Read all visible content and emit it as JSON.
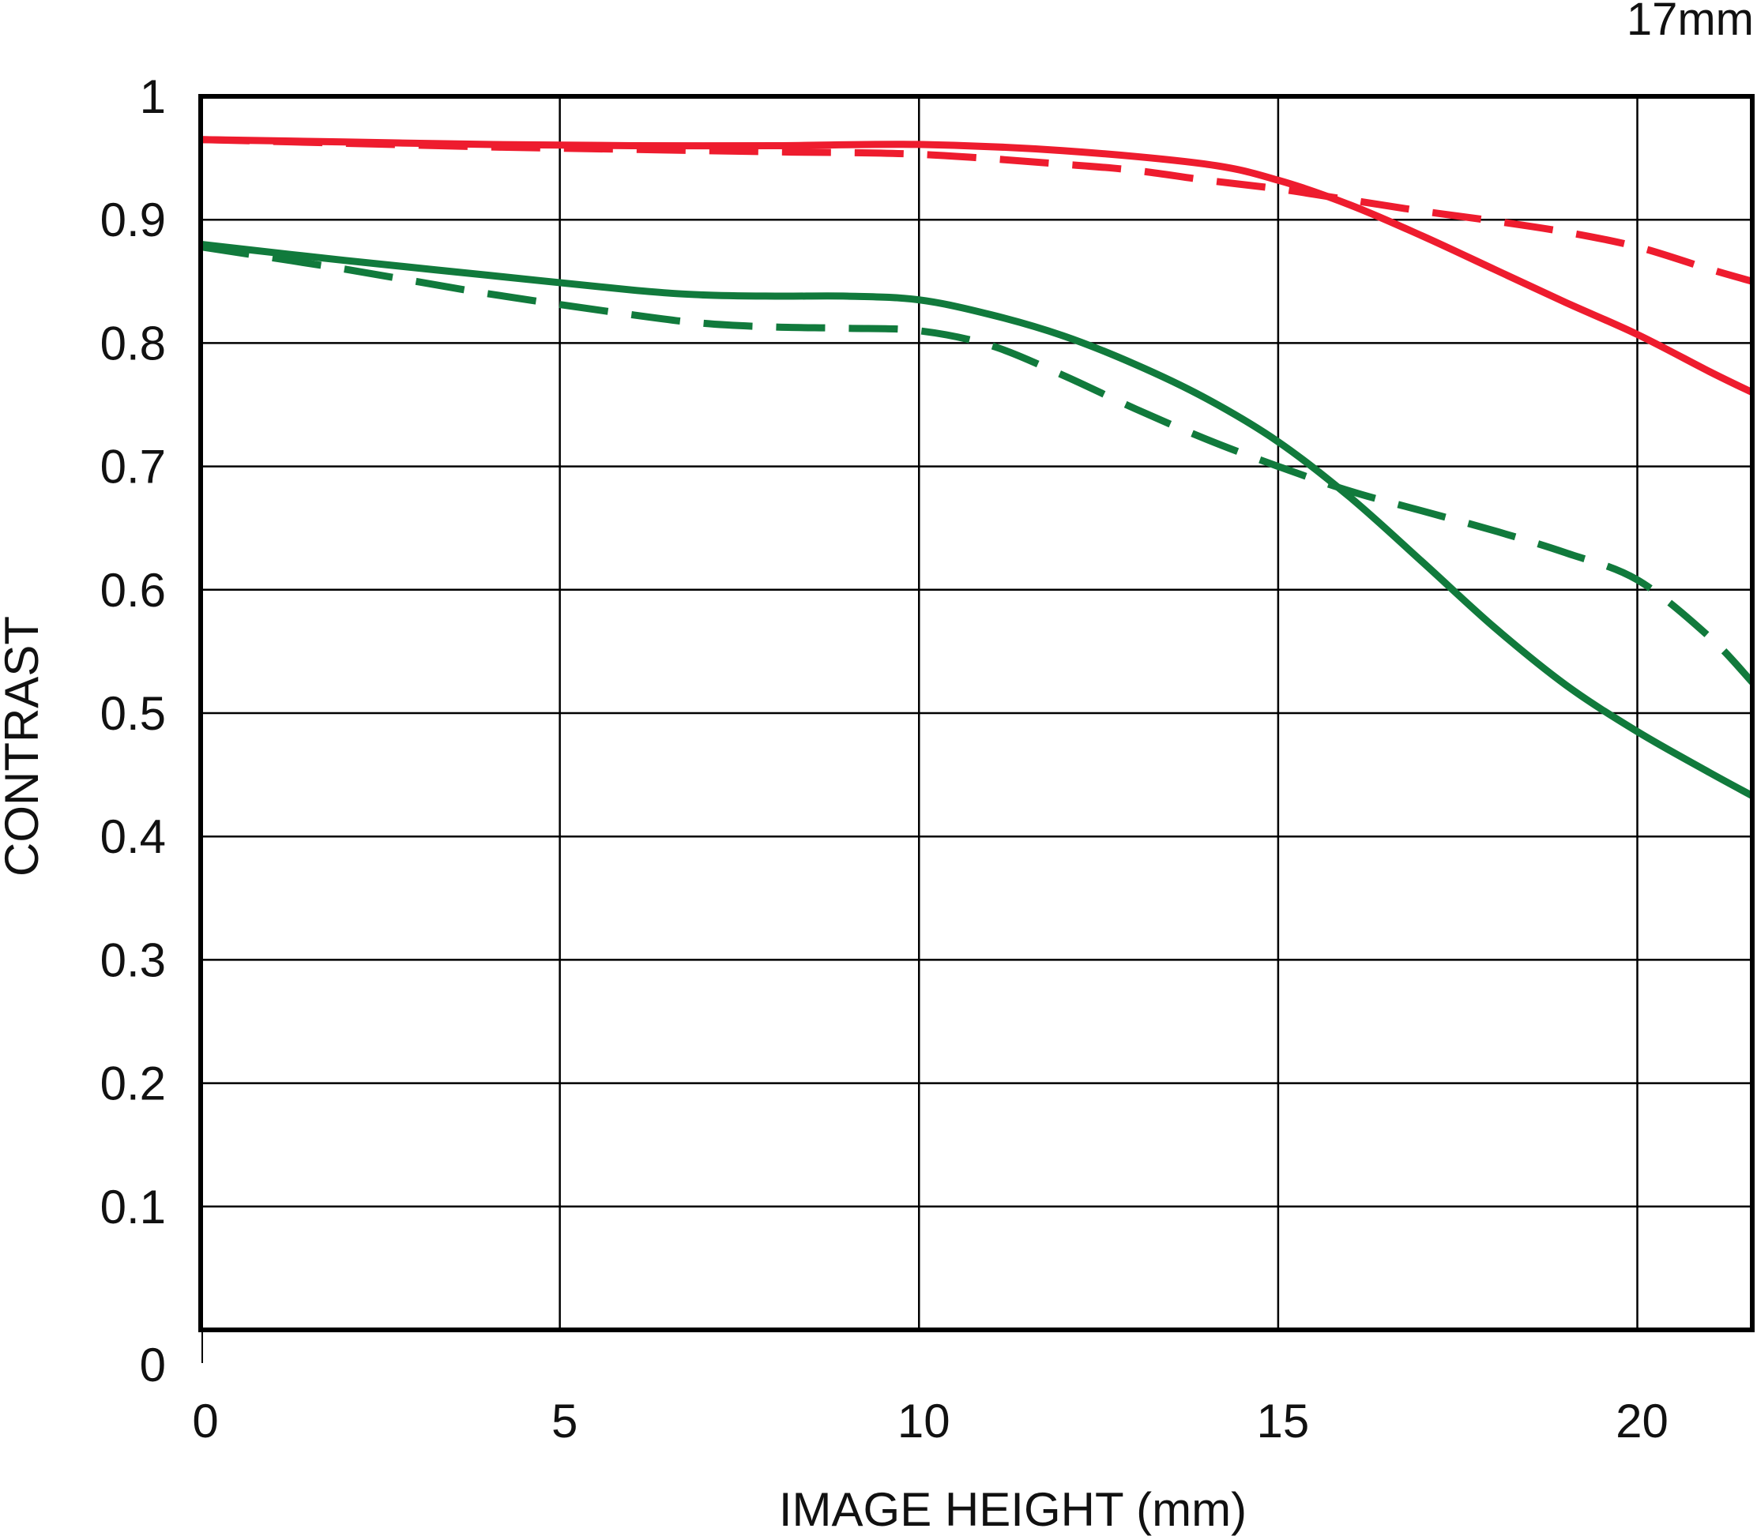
{
  "chart_data": {
    "type": "line",
    "title": "17mm",
    "xlabel": "IMAGE HEIGHT (mm)",
    "ylabel": "CONTRAST",
    "xlim": [
      0,
      21.6
    ],
    "ylim": [
      0,
      1
    ],
    "xticks": [
      "0",
      "5",
      "10",
      "15",
      "20"
    ],
    "xtick_values": [
      0,
      5,
      10,
      15,
      20
    ],
    "yticks": [
      "0",
      "0.1",
      "0.2",
      "0.3",
      "0.4",
      "0.5",
      "0.6",
      "0.7",
      "0.8",
      "0.9",
      "1"
    ],
    "ytick_values": [
      0,
      0.1,
      0.2,
      0.3,
      0.4,
      0.5,
      0.6,
      0.7,
      0.8,
      0.9,
      1
    ],
    "grid": true,
    "series": [
      {
        "color": "#ee1c2e",
        "dash": "solid",
        "x": [
          0,
          2,
          4,
          6,
          8,
          10,
          12,
          14,
          15,
          16,
          17,
          18,
          19,
          20,
          21,
          21.6
        ],
        "y": [
          0.965,
          0.963,
          0.961,
          0.96,
          0.96,
          0.961,
          0.956,
          0.945,
          0.932,
          0.912,
          0.887,
          0.86,
          0.833,
          0.807,
          0.777,
          0.76
        ]
      },
      {
        "color": "#ee1c2e",
        "dash": "dashed",
        "x": [
          0,
          2,
          4,
          6,
          8,
          10,
          12,
          13,
          14,
          15,
          16,
          17,
          18,
          19,
          20,
          21,
          21.6
        ],
        "y": [
          0.965,
          0.962,
          0.959,
          0.957,
          0.955,
          0.953,
          0.945,
          0.94,
          0.932,
          0.925,
          0.916,
          0.907,
          0.899,
          0.89,
          0.878,
          0.86,
          0.85
        ]
      },
      {
        "color": "#117a3c",
        "dash": "solid",
        "x": [
          0,
          2,
          4,
          6,
          7,
          8,
          9,
          10,
          11,
          12,
          13,
          14,
          15,
          16,
          17,
          18,
          19,
          20,
          21,
          21.6
        ],
        "y": [
          0.88,
          0.867,
          0.855,
          0.843,
          0.839,
          0.838,
          0.838,
          0.835,
          0.823,
          0.806,
          0.783,
          0.755,
          0.72,
          0.675,
          0.623,
          0.57,
          0.523,
          0.485,
          0.452,
          0.433
        ]
      },
      {
        "color": "#117a3c",
        "dash": "dashed",
        "x": [
          0,
          2,
          4,
          6,
          7,
          8,
          9,
          10,
          11,
          12,
          13,
          14,
          15,
          16,
          17,
          18,
          19,
          20,
          21,
          21.6
        ],
        "y": [
          0.878,
          0.86,
          0.84,
          0.823,
          0.816,
          0.813,
          0.812,
          0.81,
          0.798,
          0.774,
          0.747,
          0.722,
          0.7,
          0.68,
          0.664,
          0.648,
          0.63,
          0.608,
          0.562,
          0.525
        ]
      }
    ]
  }
}
